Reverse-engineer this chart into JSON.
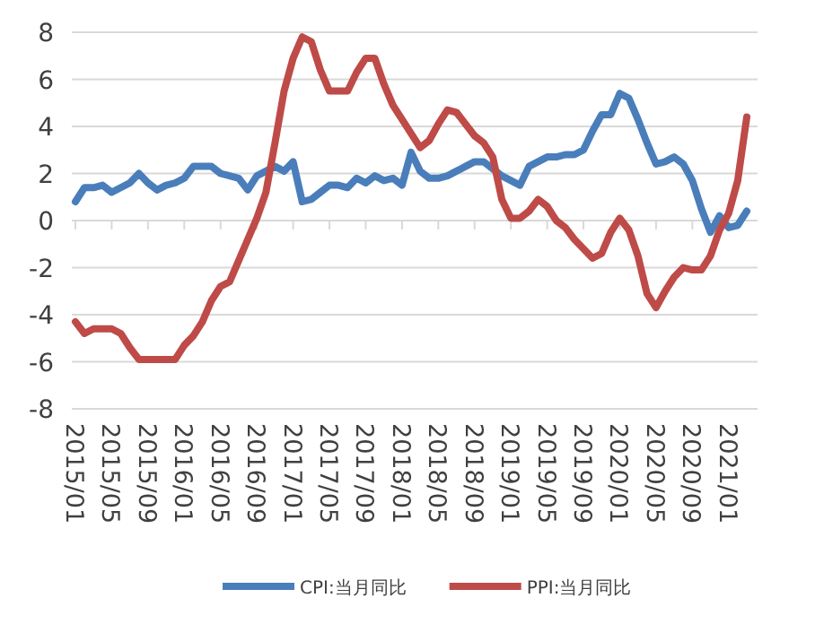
{
  "chart_data": {
    "type": "line",
    "categories": [
      "2015/01",
      null,
      null,
      null,
      "2015/05",
      null,
      null,
      null,
      "2015/09",
      null,
      null,
      null,
      "2016/01",
      null,
      null,
      null,
      "2016/05",
      null,
      null,
      null,
      "2016/09",
      null,
      null,
      null,
      "2017/01",
      null,
      null,
      null,
      "2017/05",
      null,
      null,
      null,
      "2017/09",
      null,
      null,
      null,
      "2018/01",
      null,
      null,
      null,
      "2018/05",
      null,
      null,
      null,
      "2018/09",
      null,
      null,
      null,
      "2019/01",
      null,
      null,
      null,
      "2019/05",
      null,
      null,
      null,
      "2019/09",
      null,
      null,
      null,
      "2020/01",
      null,
      null,
      null,
      "2020/05",
      null,
      null,
      null,
      "2020/09",
      null,
      null,
      null,
      "2021/01",
      null,
      null
    ],
    "series": [
      {
        "name": "CPI:当月同比",
        "color": "#4a7ebb",
        "values": [
          0.8,
          1.4,
          1.4,
          1.5,
          1.2,
          1.4,
          1.6,
          2.0,
          1.6,
          1.3,
          1.5,
          1.6,
          1.8,
          2.3,
          2.3,
          2.3,
          2.0,
          1.9,
          1.8,
          1.3,
          1.9,
          2.1,
          2.3,
          2.1,
          2.5,
          0.8,
          0.9,
          1.2,
          1.5,
          1.5,
          1.4,
          1.8,
          1.6,
          1.9,
          1.7,
          1.8,
          1.5,
          2.9,
          2.1,
          1.8,
          1.8,
          1.9,
          2.1,
          2.3,
          2.5,
          2.5,
          2.2,
          1.9,
          1.7,
          1.5,
          2.3,
          2.5,
          2.7,
          2.7,
          2.8,
          2.8,
          3.0,
          3.8,
          4.5,
          4.5,
          5.4,
          5.2,
          4.3,
          3.3,
          2.4,
          2.5,
          2.7,
          2.4,
          1.7,
          0.5,
          -0.5,
          0.2,
          -0.3,
          -0.2,
          0.4
        ]
      },
      {
        "name": "PPI:当月同比",
        "color": "#be4b48",
        "values": [
          -4.3,
          -4.8,
          -4.6,
          -4.6,
          -4.6,
          -4.8,
          -5.4,
          -5.9,
          -5.9,
          -5.9,
          -5.9,
          -5.9,
          -5.3,
          -4.9,
          -4.3,
          -3.4,
          -2.8,
          -2.6,
          -1.7,
          -0.8,
          0.1,
          1.2,
          3.3,
          5.5,
          6.9,
          7.8,
          7.6,
          6.4,
          5.5,
          5.5,
          5.5,
          6.3,
          6.9,
          6.9,
          5.8,
          4.9,
          4.3,
          3.7,
          3.1,
          3.4,
          4.1,
          4.7,
          4.6,
          4.1,
          3.6,
          3.3,
          2.7,
          0.9,
          0.1,
          0.1,
          0.4,
          0.9,
          0.6,
          0.0,
          -0.3,
          -0.8,
          -1.2,
          -1.6,
          -1.4,
          -0.5,
          0.1,
          -0.4,
          -1.5,
          -3.1,
          -3.7,
          -3.0,
          -2.4,
          -2.0,
          -2.1,
          -2.1,
          -1.5,
          -0.4,
          0.3,
          1.7,
          4.4
        ]
      }
    ],
    "ylim": [
      -8,
      8
    ],
    "yticks": [
      -8,
      -6,
      -4,
      -2,
      0,
      2,
      4,
      6,
      8
    ],
    "grid": "y",
    "legend": "bottom"
  }
}
